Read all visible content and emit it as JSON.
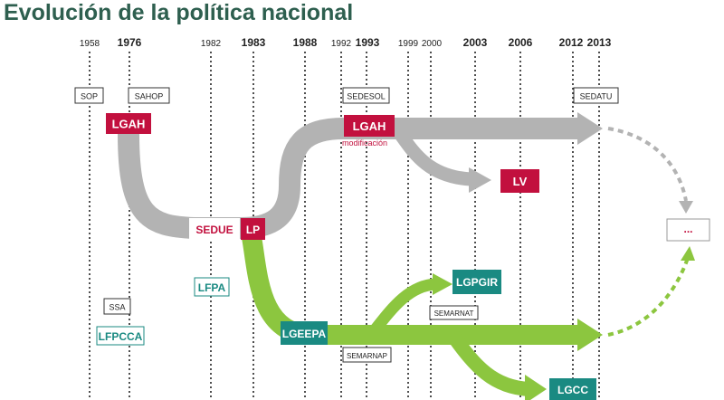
{
  "title": "Evolución de la política nacional",
  "years": [
    "1958",
    "1976",
    "1982",
    "1983",
    "1988",
    "1992",
    "1993",
    "1999",
    "2000",
    "2003",
    "2006",
    "2012",
    "2013"
  ],
  "bold_years": [
    "1976",
    "1983",
    "1988",
    "1993",
    "2003",
    "2006",
    "2012",
    "2013"
  ],
  "agencies": {
    "sop": "SOP",
    "sahop": "SAHOP",
    "sedesol": "SEDESOL",
    "sedatu": "SEDATU",
    "ssa": "SSA",
    "semarnat": "SEMARNAT",
    "semarnap": "SEMARNAP"
  },
  "laws": {
    "lgah_1976": "LGAH",
    "lgah_1993": "LGAH",
    "lgah_note": "modificación",
    "lv": "LV",
    "sedue": "SEDUE",
    "lp": "LP",
    "lfpa": "LFPA",
    "lfpcca": "LFPCCA",
    "lgeepa": "LGEEPA",
    "lgpgir": "LGPGIR",
    "lgcc": "LGCC",
    "future": "..."
  },
  "colors": {
    "title": "#2e5f4f",
    "crimson": "#c2103e",
    "teal": "#1a8a82",
    "grey_flow": "#b3b3b3",
    "green_flow": "#8cc63f"
  }
}
